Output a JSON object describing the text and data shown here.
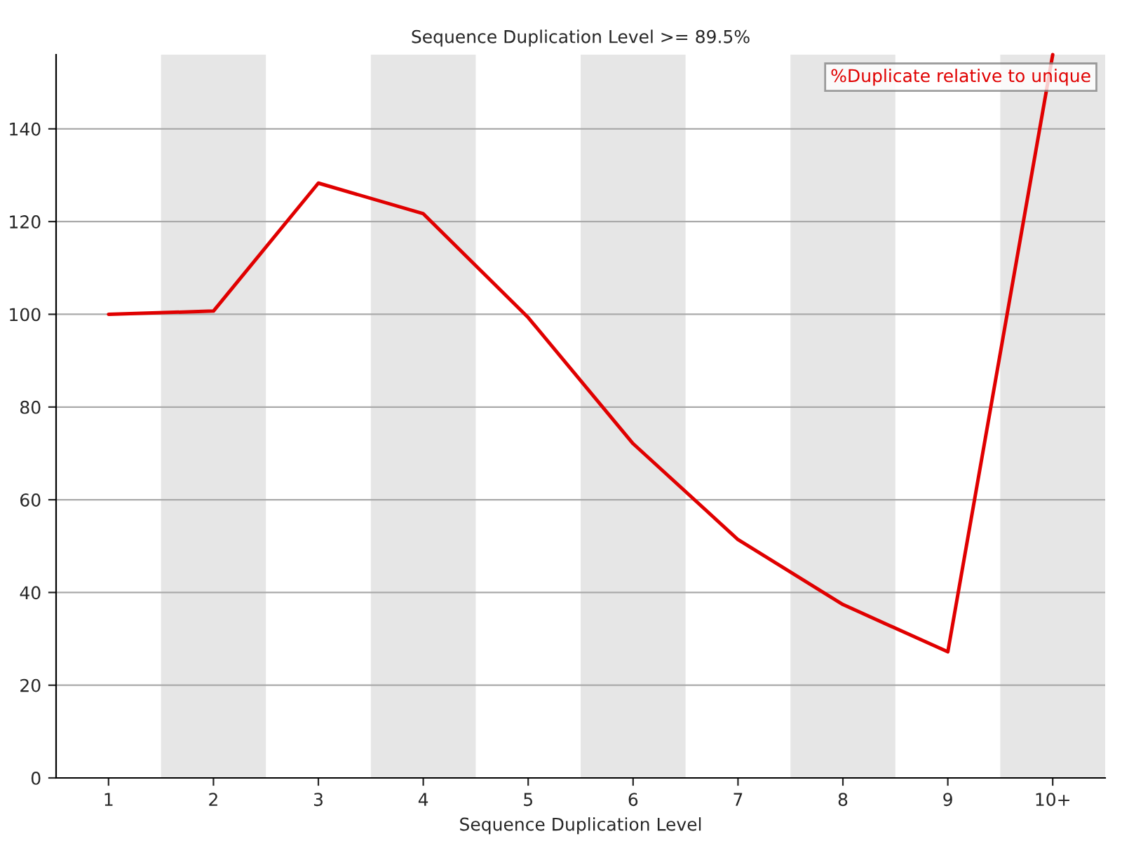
{
  "chart_data": {
    "type": "line",
    "title": "Sequence Duplication Level >= 89.5%",
    "xlabel": "Sequence Duplication Level",
    "categories": [
      "1",
      "2",
      "3",
      "4",
      "5",
      "6",
      "7",
      "8",
      "9",
      "10+"
    ],
    "series": [
      {
        "name": "%Duplicate relative to unique",
        "color": "#e00000",
        "values": [
          100,
          100.7,
          128.3,
          121.7,
          99.3,
          72.1,
          51.4,
          37.4,
          27.2,
          156
        ]
      }
    ],
    "ylim": [
      0,
      156
    ],
    "yticks": [
      0,
      20,
      40,
      60,
      80,
      100,
      120,
      140
    ],
    "grid": "y",
    "legend": "top right",
    "marker": "none",
    "line_style": "solid",
    "bands": [
      {
        "axis": "x",
        "from": "2",
        "to": "2",
        "color": "#e6e6e6"
      },
      {
        "axis": "x",
        "from": "4",
        "to": "4",
        "color": "#e6e6e6"
      },
      {
        "axis": "x",
        "from": "6",
        "to": "6",
        "color": "#e6e6e6"
      },
      {
        "axis": "x",
        "from": "8",
        "to": "8",
        "color": "#e6e6e6"
      },
      {
        "axis": "x",
        "from": "10+",
        "to": "10+",
        "color": "#e6e6e6"
      }
    ]
  }
}
